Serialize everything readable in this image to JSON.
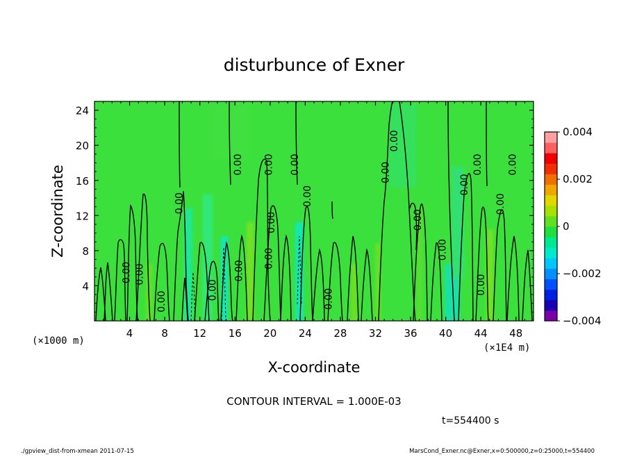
{
  "chart_data": {
    "type": "heatmap",
    "title": "disturbunce of Exner",
    "xlabel": "X-coordinate",
    "ylabel": "Z-coordinate",
    "x_unit_label": "(×1000 m)",
    "x_scale_label": "(×1E4 m)",
    "xlim": [
      0,
      50
    ],
    "ylim": [
      0,
      25
    ],
    "x_ticks": [
      4,
      8,
      12,
      16,
      20,
      24,
      28,
      32,
      36,
      40,
      44,
      48
    ],
    "y_ticks": [
      4,
      8,
      12,
      16,
      20,
      24
    ],
    "colorbar": {
      "range": [
        -0.004,
        0.004
      ],
      "tick_labels": [
        "0.004",
        "0.002",
        "0",
        "−0.002",
        "−0.004"
      ],
      "tick_values": [
        0.004,
        0.002,
        0,
        -0.002,
        -0.004
      ],
      "colors": [
        "#7a00a8",
        "#1a00b0",
        "#0020e0",
        "#0050ff",
        "#0090ff",
        "#00c8ff",
        "#00eaca",
        "#00e890",
        "#20e040",
        "#60e020",
        "#a8e000",
        "#e0d800",
        "#f0a800",
        "#f07000",
        "#f03000",
        "#f00000",
        "#ff6060",
        "#ffa0a0"
      ]
    },
    "contour_interval": "CONTOUR INTERVAL = 1.000E-03",
    "contour_labels": [
      {
        "x": 4,
        "z": 5.5,
        "text": "0.00"
      },
      {
        "x": 5.5,
        "z": 5.3,
        "text": "0.00"
      },
      {
        "x": 8,
        "z": 2.2,
        "text": "0.00"
      },
      {
        "x": 10,
        "z": 13.4,
        "text": "0.00"
      },
      {
        "x": 13.8,
        "z": 3.5,
        "text": "0.00"
      },
      {
        "x": 16.7,
        "z": 17.8,
        "text": "0.00"
      },
      {
        "x": 16.8,
        "z": 5.7,
        "text": "0.00"
      },
      {
        "x": 20.2,
        "z": 17.8,
        "text": "0.00"
      },
      {
        "x": 20.2,
        "z": 7.1,
        "text": "0.00"
      },
      {
        "x": 20.5,
        "z": 11.2,
        "text": "0.00"
      },
      {
        "x": 23.2,
        "z": 17.8,
        "text": "0.00"
      },
      {
        "x": 24.6,
        "z": 14.2,
        "text": "0.00"
      },
      {
        "x": 27,
        "z": 2.5,
        "text": "0.00"
      },
      {
        "x": 33.5,
        "z": 16.9,
        "text": "0.00"
      },
      {
        "x": 34.5,
        "z": 20.5,
        "text": "0.00"
      },
      {
        "x": 37.2,
        "z": 11.5,
        "text": "0.00"
      },
      {
        "x": 40,
        "z": 8.1,
        "text": "0.00"
      },
      {
        "x": 42.5,
        "z": 15.5,
        "text": "0.00"
      },
      {
        "x": 44,
        "z": 17.8,
        "text": "0.00"
      },
      {
        "x": 44.4,
        "z": 4.1,
        "text": "0.00"
      },
      {
        "x": 46.6,
        "z": 13.3,
        "text": "0.00"
      },
      {
        "x": 48,
        "z": 17.8,
        "text": "0.00"
      }
    ]
  },
  "time_label": "t=554400 s",
  "footer_left": "./gpview_dist-from-xmean  2011-07-15",
  "footer_right": "MarsCond_Exner.nc@Exner,x=0:500000,z=0:25000,t=554400",
  "colors": {
    "background_field": "#3ce03c",
    "contour": "#000000"
  }
}
